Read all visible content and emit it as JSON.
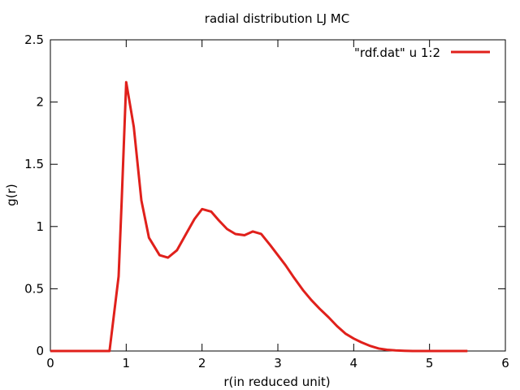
{
  "chart_data": {
    "type": "line",
    "title": "radial distribution LJ MC",
    "xlabel": "r(in reduced unit)",
    "ylabel": "g(r)",
    "xlim": [
      0,
      6
    ],
    "ylim": [
      0,
      2.5
    ],
    "xticks": [
      0,
      1,
      2,
      3,
      4,
      5,
      6
    ],
    "xtick_labels": [
      "0",
      "1",
      "2",
      "3",
      "4",
      "5",
      "6"
    ],
    "yticks": [
      0,
      0.5,
      1,
      1.5,
      2,
      2.5
    ],
    "ytick_labels": [
      "0",
      "0.5",
      "1",
      "1.5",
      "2",
      "2.5"
    ],
    "grid": false,
    "legend_position": "top-right",
    "series": [
      {
        "name": "\"rdf.dat\" u 1:2",
        "color": "#e0201b",
        "x": [
          0,
          0.7,
          0.78,
          0.9,
          0.94,
          1.0,
          1.1,
          1.2,
          1.3,
          1.44,
          1.55,
          1.67,
          1.78,
          1.9,
          2.0,
          2.12,
          2.22,
          2.33,
          2.44,
          2.56,
          2.67,
          2.78,
          2.9,
          3.0,
          3.1,
          3.2,
          3.33,
          3.44,
          3.55,
          3.67,
          3.78,
          3.89,
          4.0,
          4.1,
          4.22,
          4.33,
          4.44,
          4.55,
          4.67,
          4.78,
          4.9,
          5.0,
          5.5
        ],
        "y": [
          0,
          0,
          0,
          0.6,
          1.2,
          2.16,
          1.8,
          1.21,
          0.91,
          0.77,
          0.75,
          0.81,
          0.93,
          1.06,
          1.14,
          1.12,
          1.05,
          0.98,
          0.94,
          0.93,
          0.96,
          0.94,
          0.85,
          0.77,
          0.69,
          0.6,
          0.49,
          0.41,
          0.34,
          0.27,
          0.2,
          0.14,
          0.1,
          0.07,
          0.04,
          0.02,
          0.01,
          0.005,
          0.002,
          0,
          0,
          0,
          0
        ]
      }
    ]
  }
}
